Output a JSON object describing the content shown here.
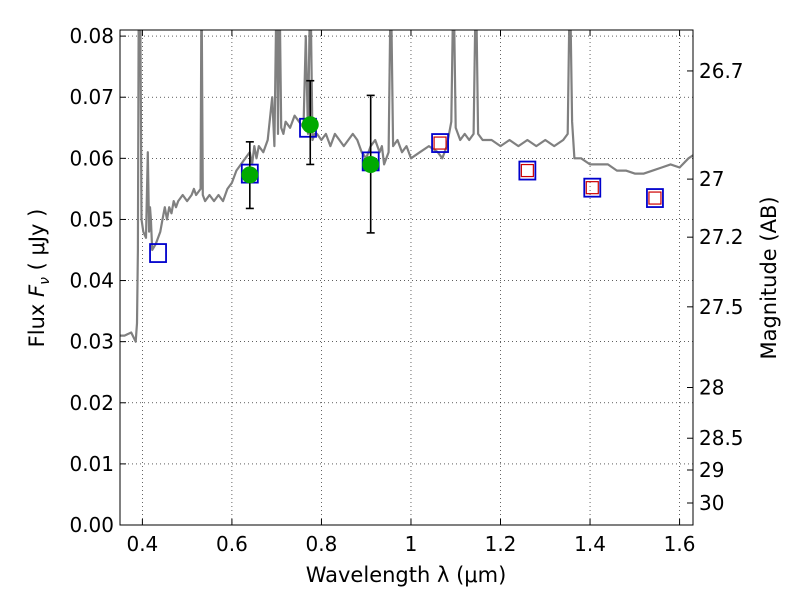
{
  "chart_data": {
    "type": "scatter",
    "xlabel": "Wavelength  λ (μm)",
    "ylabel": {
      "prefix": "Flux ",
      "symbol": "F",
      "subscript": "ν",
      "unit": "  ( μJy )"
    },
    "y2label": "Magnitude (AB)",
    "xlim": [
      0.35,
      1.63
    ],
    "ylim": [
      0.0,
      0.081
    ],
    "grid": true,
    "x_ticks": [
      0.4,
      0.6,
      0.8,
      1.0,
      1.2,
      1.4,
      1.6
    ],
    "x_tick_labels": [
      "0.4",
      "0.6",
      "0.8",
      "1",
      "1.2",
      "1.4",
      "1.6"
    ],
    "y_ticks": [
      0.0,
      0.01,
      0.02,
      0.03,
      0.04,
      0.05,
      0.06,
      0.07,
      0.08
    ],
    "y_tick_labels": [
      "0.00",
      "0.01",
      "0.02",
      "0.03",
      "0.04",
      "0.05",
      "0.06",
      "0.07",
      "0.08"
    ],
    "y2_ticks": [
      {
        "label": "26.7",
        "flux": 0.0743
      },
      {
        "label": "27",
        "flux": 0.0566
      },
      {
        "label": "27.2",
        "flux": 0.0471
      },
      {
        "label": "27.5",
        "flux": 0.0357
      },
      {
        "label": "28",
        "flux": 0.0225
      },
      {
        "label": "28.5",
        "flux": 0.0142
      },
      {
        "label": "29",
        "flux": 0.009
      },
      {
        "label": "30",
        "flux": 0.0036
      }
    ],
    "series": [
      {
        "style": "line",
        "color": "#808080",
        "x": [
          0.35,
          0.36,
          0.375,
          0.385,
          0.388,
          0.39,
          0.392,
          0.395,
          0.398,
          0.402,
          0.408,
          0.412,
          0.415,
          0.417,
          0.419,
          0.422,
          0.43,
          0.44,
          0.445,
          0.45,
          0.455,
          0.46,
          0.465,
          0.47,
          0.475,
          0.48,
          0.49,
          0.5,
          0.51,
          0.515,
          0.52,
          0.53,
          0.532,
          0.535,
          0.54,
          0.55,
          0.56,
          0.57,
          0.58,
          0.59,
          0.6,
          0.61,
          0.62,
          0.63,
          0.64,
          0.645,
          0.65,
          0.655,
          0.66,
          0.67,
          0.68,
          0.69,
          0.695,
          0.7,
          0.703,
          0.706,
          0.71,
          0.715,
          0.72,
          0.73,
          0.74,
          0.75,
          0.76,
          0.765,
          0.77,
          0.775,
          0.78,
          0.785,
          0.79,
          0.8,
          0.81,
          0.82,
          0.83,
          0.84,
          0.85,
          0.86,
          0.87,
          0.88,
          0.89,
          0.9,
          0.91,
          0.92,
          0.93,
          0.935,
          0.94,
          0.95,
          0.955,
          0.96,
          0.97,
          0.98,
          0.99,
          1.0,
          1.02,
          1.04,
          1.06,
          1.07,
          1.08,
          1.09,
          1.095,
          1.1,
          1.11,
          1.12,
          1.13,
          1.14,
          1.145,
          1.15,
          1.16,
          1.18,
          1.2,
          1.22,
          1.24,
          1.26,
          1.28,
          1.3,
          1.32,
          1.34,
          1.35,
          1.355,
          1.36,
          1.365,
          1.37,
          1.38,
          1.4,
          1.42,
          1.44,
          1.46,
          1.48,
          1.5,
          1.52,
          1.54,
          1.56,
          1.58,
          1.6,
          1.62,
          1.63
        ],
        "y": [
          0.031,
          0.031,
          0.0315,
          0.03,
          0.033,
          0.045,
          0.09,
          0.09,
          0.05,
          0.048,
          0.047,
          0.061,
          0.048,
          0.052,
          0.05,
          0.045,
          0.046,
          0.048,
          0.05,
          0.052,
          0.05,
          0.052,
          0.051,
          0.053,
          0.052,
          0.053,
          0.054,
          0.053,
          0.054,
          0.055,
          0.054,
          0.055,
          0.09,
          0.054,
          0.053,
          0.054,
          0.053,
          0.054,
          0.053,
          0.055,
          0.056,
          0.058,
          0.059,
          0.06,
          0.061,
          0.059,
          0.062,
          0.06,
          0.062,
          0.061,
          0.063,
          0.07,
          0.062,
          0.09,
          0.064,
          0.09,
          0.065,
          0.064,
          0.066,
          0.065,
          0.067,
          0.066,
          0.065,
          0.08,
          0.064,
          0.09,
          0.063,
          0.064,
          0.064,
          0.063,
          0.064,
          0.062,
          0.064,
          0.063,
          0.062,
          0.063,
          0.064,
          0.063,
          0.061,
          0.06,
          0.062,
          0.063,
          0.061,
          0.062,
          0.059,
          0.061,
          0.09,
          0.062,
          0.063,
          0.061,
          0.062,
          0.06,
          0.061,
          0.062,
          0.061,
          0.06,
          0.062,
          0.066,
          0.09,
          0.065,
          0.063,
          0.064,
          0.063,
          0.064,
          0.09,
          0.064,
          0.063,
          0.063,
          0.062,
          0.063,
          0.062,
          0.063,
          0.062,
          0.063,
          0.062,
          0.063,
          0.064,
          0.09,
          0.066,
          0.06,
          0.06,
          0.06,
          0.059,
          0.059,
          0.059,
          0.058,
          0.058,
          0.0575,
          0.0575,
          0.058,
          0.0585,
          0.059,
          0.0585,
          0.06,
          0.0605
        ]
      },
      {
        "style": "square-marker",
        "color": "#0000cc",
        "x": [
          0.435,
          0.64,
          0.77,
          0.91,
          1.065,
          1.26,
          1.405,
          1.545
        ],
        "y": [
          0.0445,
          0.0575,
          0.065,
          0.0595,
          0.0625,
          0.058,
          0.0552,
          0.0535
        ]
      },
      {
        "style": "small-square-marker",
        "color": "#cc0000",
        "x": [
          1.065,
          1.26,
          1.405,
          1.545
        ],
        "y": [
          0.0625,
          0.058,
          0.0552,
          0.0535
        ]
      },
      {
        "style": "circle-with-error",
        "color": "#00aa00",
        "x": [
          0.64,
          0.775,
          0.91
        ],
        "y": [
          0.0573,
          0.0655,
          0.059
        ],
        "yerr_low": [
          0.0518,
          0.059,
          0.0478
        ],
        "yerr_high": [
          0.0627,
          0.0727,
          0.0703
        ]
      }
    ]
  }
}
